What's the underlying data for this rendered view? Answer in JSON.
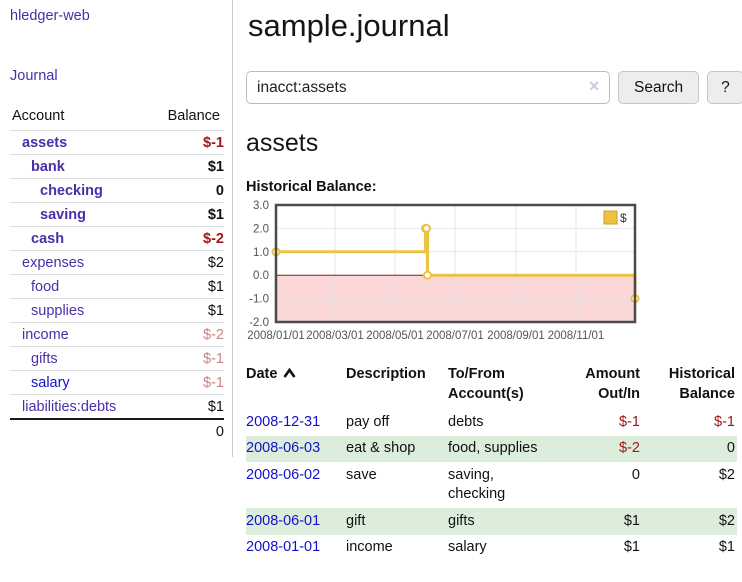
{
  "colors": {
    "link_purple": "#4b2fa6",
    "link_blue": "#1111cc",
    "negative_red": "#a11616",
    "negative_rose": "#c98585",
    "row_stripe_green": "#dceddc",
    "chart_series_yellow": "#edc240",
    "chart_negative_fill": "#fbd7d7",
    "chart_zero_line": "#8b1d1d"
  },
  "sidebar": {
    "brand": "hledger-web",
    "journal_link": "Journal",
    "accounts_table": {
      "headers": {
        "account": "Account",
        "balance": "Balance"
      },
      "rows": [
        {
          "name": "assets",
          "balance": "$-1",
          "row_cls": "strong d0",
          "bal_cls": "neg"
        },
        {
          "name": "bank",
          "balance": "$1",
          "row_cls": "strong d1",
          "bal_cls": ""
        },
        {
          "name": "checking",
          "balance": "0",
          "row_cls": "strong d2",
          "bal_cls": ""
        },
        {
          "name": "saving",
          "balance": "$1",
          "row_cls": "strong d2",
          "bal_cls": ""
        },
        {
          "name": "cash",
          "balance": "$-2",
          "row_cls": "strong d1",
          "bal_cls": "neg"
        },
        {
          "name": "expenses",
          "balance": "$2",
          "row_cls": "d0",
          "bal_cls": ""
        },
        {
          "name": "food",
          "balance": "$1",
          "row_cls": "d1",
          "bal_cls": ""
        },
        {
          "name": "supplies",
          "balance": "$1",
          "row_cls": "d1",
          "bal_cls": ""
        },
        {
          "name": "income",
          "balance": "$-2",
          "row_cls": "d0",
          "bal_cls": "rose"
        },
        {
          "name": "gifts",
          "balance": "$-1",
          "row_cls": "d1",
          "bal_cls": "rose"
        },
        {
          "name": "salary",
          "balance": "$-1",
          "row_cls": "d1 blue",
          "bal_cls": "rose"
        },
        {
          "name": "liabilities:debts",
          "balance": "$1",
          "row_cls": "d0",
          "bal_cls": ""
        }
      ],
      "total": "0"
    }
  },
  "main": {
    "title": "sample.journal",
    "search": {
      "value": "inacct:assets",
      "clear_icon": "✕",
      "search_button": "Search",
      "help_button": "?"
    },
    "account_heading": "assets",
    "chart_label": "Historical Balance:",
    "register_table": {
      "headers": {
        "date": "Date",
        "description": "Description",
        "tofrom": "To/From Account(s)",
        "amount": "Amount Out/In",
        "balance": "Historical Balance"
      },
      "rows": [
        {
          "date": "2008-12-31",
          "description": "pay off",
          "tofrom": "debts",
          "amount": "$-1",
          "balance": "$-1",
          "amount_cls": "neg",
          "balance_cls": "neg"
        },
        {
          "date": "2008-06-03",
          "description": "eat & shop",
          "tofrom": "food, supplies",
          "amount": "$-2",
          "balance": "0",
          "amount_cls": "neg",
          "balance_cls": ""
        },
        {
          "date": "2008-06-02",
          "description": "save",
          "tofrom": "saving,\nchecking",
          "amount": "0",
          "balance": "$2",
          "amount_cls": "",
          "balance_cls": ""
        },
        {
          "date": "2008-06-01",
          "description": "gift",
          "tofrom": "gifts",
          "amount": "$1",
          "balance": "$2",
          "amount_cls": "",
          "balance_cls": ""
        },
        {
          "date": "2008-01-01",
          "description": "income",
          "tofrom": "salary",
          "amount": "$1",
          "balance": "$1",
          "amount_cls": "",
          "balance_cls": ""
        }
      ]
    }
  },
  "chart_data": {
    "type": "line",
    "step": true,
    "title": "Historical Balance",
    "xlabel": "",
    "ylabel": "",
    "series": [
      {
        "name": "$",
        "color": "#edc240",
        "points": [
          [
            "2008-01-01",
            1
          ],
          [
            "2008-06-01",
            2
          ],
          [
            "2008-06-02",
            2
          ],
          [
            "2008-06-03",
            0
          ],
          [
            "2008-12-31",
            -1
          ]
        ]
      }
    ],
    "xrange": [
      "2008-01-01",
      "2008-12-31"
    ],
    "ylim": [
      -2,
      3
    ],
    "yticks": [
      3,
      2,
      1,
      0,
      -1,
      -2
    ],
    "xticks": [
      {
        "date": "2008-01-01",
        "label": "2008/01/01"
      },
      {
        "date": "2008-03-01",
        "label": "2008/03/01"
      },
      {
        "date": "2008-05-01",
        "label": "2008/05/01"
      },
      {
        "date": "2008-07-01",
        "label": "2008/07/01"
      },
      {
        "date": "2008-09-01",
        "label": "2008/09/01"
      },
      {
        "date": "2008-11-01",
        "label": "2008/11/01"
      }
    ],
    "legend_position": "top-right",
    "grid": true,
    "grid_color": "#e6e6e6",
    "negative_fill": "#fbd7d7",
    "zero_line_color": "#8b1d1d",
    "border_color": "#4a4a4a",
    "tick_color": "#545454",
    "legend_box_border": "#c9a02c"
  }
}
